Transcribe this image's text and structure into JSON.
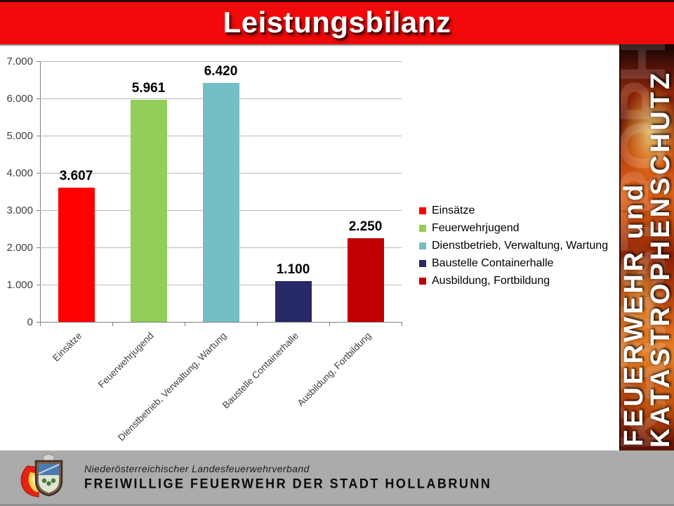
{
  "header": {
    "title": "Leistungsbilanz"
  },
  "chart_data": {
    "type": "bar",
    "title": "Leistungsbilanz",
    "categories": [
      "Einsätze",
      "Feuerwehrjugend",
      "Dienstbetrieb, Verwaltung, Wartung",
      "Baustelle Containerhalle",
      "Ausbildung, Fortbildung"
    ],
    "values": [
      3607,
      5961,
      6420,
      1100,
      2250
    ],
    "data_labels": [
      "3.607",
      "5.961",
      "6.420",
      "1.100",
      "2.250"
    ],
    "bar_colors": [
      "#fe0000",
      "#92ce58",
      "#74bec6",
      "#272a66",
      "#c00000"
    ],
    "y_ticks": [
      "7.000",
      "6.000",
      "5.000",
      "4.000",
      "3.000",
      "2.000",
      "1.000",
      "0"
    ],
    "y_tick_values": [
      7000,
      6000,
      5000,
      4000,
      3000,
      2000,
      1000,
      0
    ],
    "ylim": [
      0,
      7000
    ],
    "xlabel": "",
    "ylabel": "",
    "grid": true,
    "legend_position": "right",
    "legend": [
      {
        "label": "Einsätze",
        "color": "#fe0000"
      },
      {
        "label": "Feuerwehrjugend",
        "color": "#92ce58"
      },
      {
        "label": "Dienstbetrieb, Verwaltung, Wartung",
        "color": "#74bec6"
      },
      {
        "label": "Baustelle Containerhalle",
        "color": "#272a66"
      },
      {
        "label": "Ausbildung, Fortbildung",
        "color": "#c00000"
      }
    ]
  },
  "side_banner": {
    "line1": "FEUERWEHR und",
    "line2": "KATASTROPHENSCHUTZ"
  },
  "footer": {
    "association": "Niederösterreichischer Landesfeuerwehrverband",
    "brigade": "FREIWILLIGE FEUERWEHR DER STADT HOLLABRUNN",
    "logo": "hollabrunn-fire-brigade-crest"
  },
  "colors": {
    "header_red": "#f20a0a",
    "footer_gray": "#ababab",
    "gridline": "#b9b9b9",
    "axis": "#7f7f7f"
  }
}
